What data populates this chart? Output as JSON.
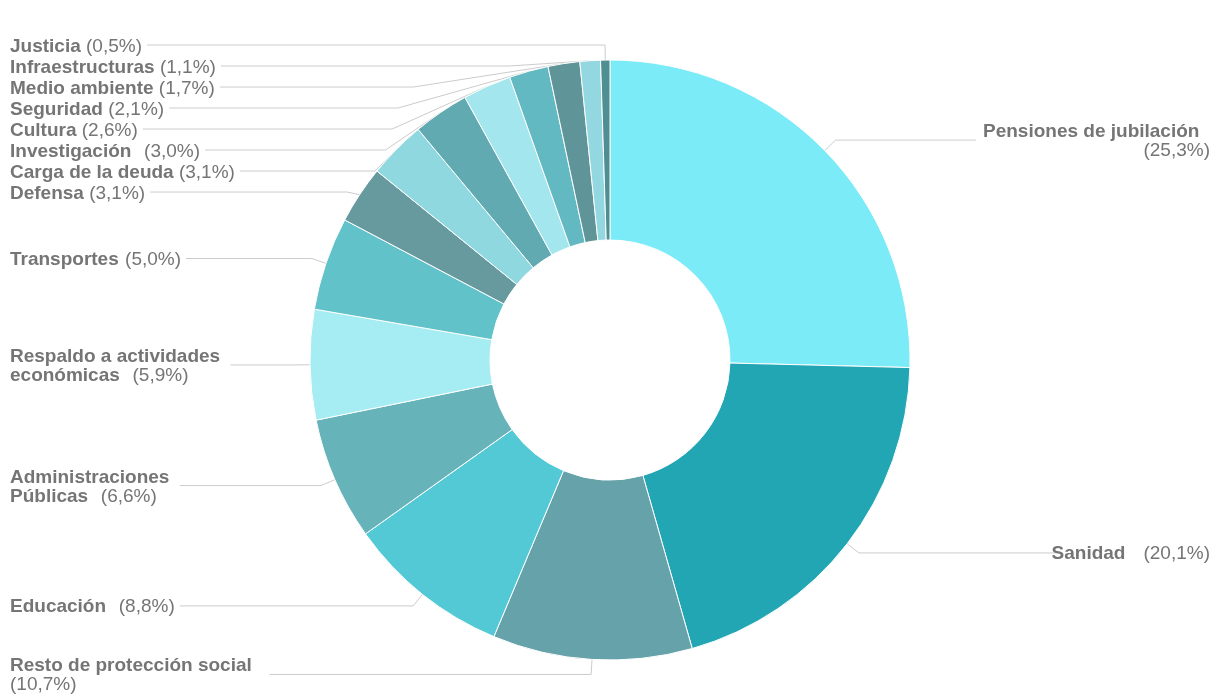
{
  "chart_data": {
    "type": "donut",
    "categories": [
      "Pensiones de jubilación",
      "Sanidad",
      "Resto de protección social",
      "Educación",
      "Administraciones Públicas",
      "Respaldo a actividades económicas",
      "Transportes",
      "Defensa",
      "Carga de la deuda",
      "Investigación",
      "Cultura",
      "Seguridad",
      "Medio ambiente",
      "Infraestructuras",
      "Justicia"
    ],
    "values": [
      25.3,
      20.1,
      10.7,
      8.8,
      6.6,
      5.9,
      5.0,
      3.1,
      3.1,
      3.0,
      2.6,
      2.1,
      1.7,
      1.1,
      0.5
    ],
    "value_labels": [
      "(25,3%)",
      "(20,1%)",
      "(10,7%)",
      "(8,8%)",
      "(6,6%)",
      "(5,9%)",
      "(5,0%)",
      "(3,1%)",
      "(3,1%)",
      "(3,0%)",
      "(2,6%)",
      "(2,1%)",
      "(1,7%)",
      "(1,1%)",
      "(0,5%)"
    ],
    "colors": [
      "#7aebf7",
      "#22a6b3",
      "#65a2a9",
      "#52c9d4",
      "#66b3b9",
      "#a6ecf3",
      "#62c2c9",
      "#669a9f",
      "#8fd8df",
      "#62aab2",
      "#a3e6ed",
      "#63b9c1",
      "#5f9499",
      "#93d8e0",
      "#4f8f94"
    ],
    "legend": false
  }
}
